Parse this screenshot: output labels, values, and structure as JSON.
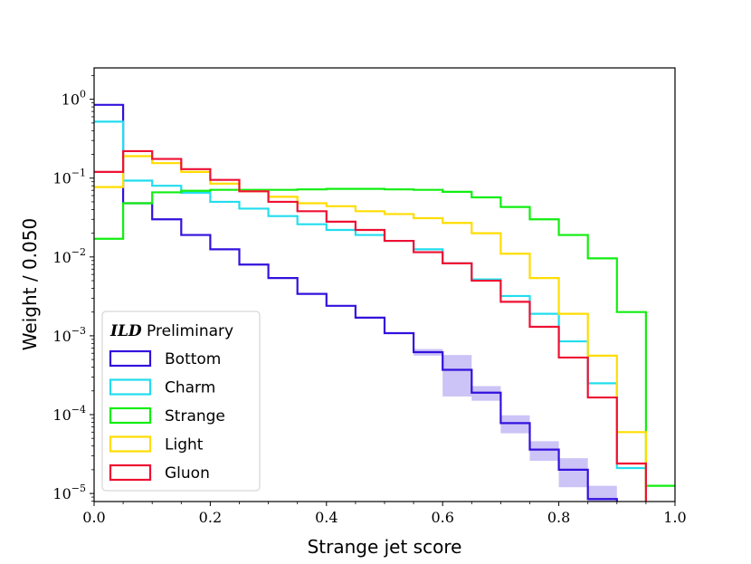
{
  "chart_data": {
    "type": "histogram",
    "xlabel": "Strange jet score",
    "ylabel": "Weight / 0.050",
    "xlim": [
      0.0,
      1.0
    ],
    "ylim": [
      7.9e-06,
      2.5
    ],
    "yscale": "log",
    "bin_edges": [
      0.0,
      0.05,
      0.1,
      0.15,
      0.2,
      0.25,
      0.3,
      0.35,
      0.4,
      0.45,
      0.5,
      0.55,
      0.6,
      0.65,
      0.7,
      0.75,
      0.8,
      0.85,
      0.9,
      0.95,
      1.0
    ],
    "x_ticks": [
      "0.0",
      "0.2",
      "0.4",
      "0.6",
      "0.8",
      "1.0"
    ],
    "y_ticks": [
      {
        "base": "10",
        "exp": "0",
        "value": 1
      },
      {
        "base": "10",
        "exp": "−1",
        "value": 0.1
      },
      {
        "base": "10",
        "exp": "−2",
        "value": 0.01
      },
      {
        "base": "10",
        "exp": "−3",
        "value": 0.001
      },
      {
        "base": "10",
        "exp": "−4",
        "value": 0.0001
      },
      {
        "base": "10",
        "exp": "−5",
        "value": 1e-05
      }
    ],
    "legend": {
      "title_bold": "ILD",
      "title_rest": " Preliminary",
      "placement": "lower-left"
    },
    "series": [
      {
        "name": "Bottom",
        "color": "#3311dd",
        "values": [
          0.85,
          0.048,
          0.03,
          0.019,
          0.0125,
          0.008,
          0.0054,
          0.0034,
          0.0024,
          0.0017,
          0.00108,
          0.00062,
          0.00037,
          0.00019,
          7.8e-05,
          3.6e-05,
          2e-05,
          8.5e-06,
          5e-06,
          5e-06
        ],
        "band_values": [
          null,
          null,
          null,
          null,
          null,
          null,
          null,
          null,
          null,
          null,
          null,
          6e-05,
          0.0002,
          4e-05,
          2e-05,
          1e-05,
          8e-06,
          4e-06,
          null,
          null
        ]
      },
      {
        "name": "Charm",
        "color": "#22ddee",
        "values": [
          0.52,
          0.093,
          0.08,
          0.065,
          0.05,
          0.041,
          0.033,
          0.026,
          0.022,
          0.019,
          0.016,
          0.0125,
          0.0083,
          0.0052,
          0.0032,
          0.0019,
          0.00085,
          0.00025,
          2.1e-05,
          5e-06
        ]
      },
      {
        "name": "Strange",
        "color": "#11ee11",
        "values": [
          0.017,
          0.048,
          0.066,
          0.069,
          0.071,
          0.071,
          0.071,
          0.072,
          0.073,
          0.073,
          0.072,
          0.071,
          0.067,
          0.057,
          0.043,
          0.03,
          0.019,
          0.0096,
          0.002,
          1.25e-05
        ]
      },
      {
        "name": "Light",
        "color": "#ffdd00",
        "values": [
          0.077,
          0.19,
          0.155,
          0.12,
          0.085,
          0.068,
          0.058,
          0.048,
          0.044,
          0.038,
          0.035,
          0.031,
          0.027,
          0.02,
          0.011,
          0.0054,
          0.0019,
          0.00056,
          6e-05,
          5e-06
        ]
      },
      {
        "name": "Gluon",
        "color": "#ee1133",
        "values": [
          0.12,
          0.22,
          0.175,
          0.13,
          0.095,
          0.068,
          0.05,
          0.038,
          0.028,
          0.022,
          0.016,
          0.0115,
          0.0083,
          0.005,
          0.0027,
          0.0013,
          0.00053,
          0.000165,
          2.4e-05,
          5e-06
        ]
      }
    ]
  }
}
